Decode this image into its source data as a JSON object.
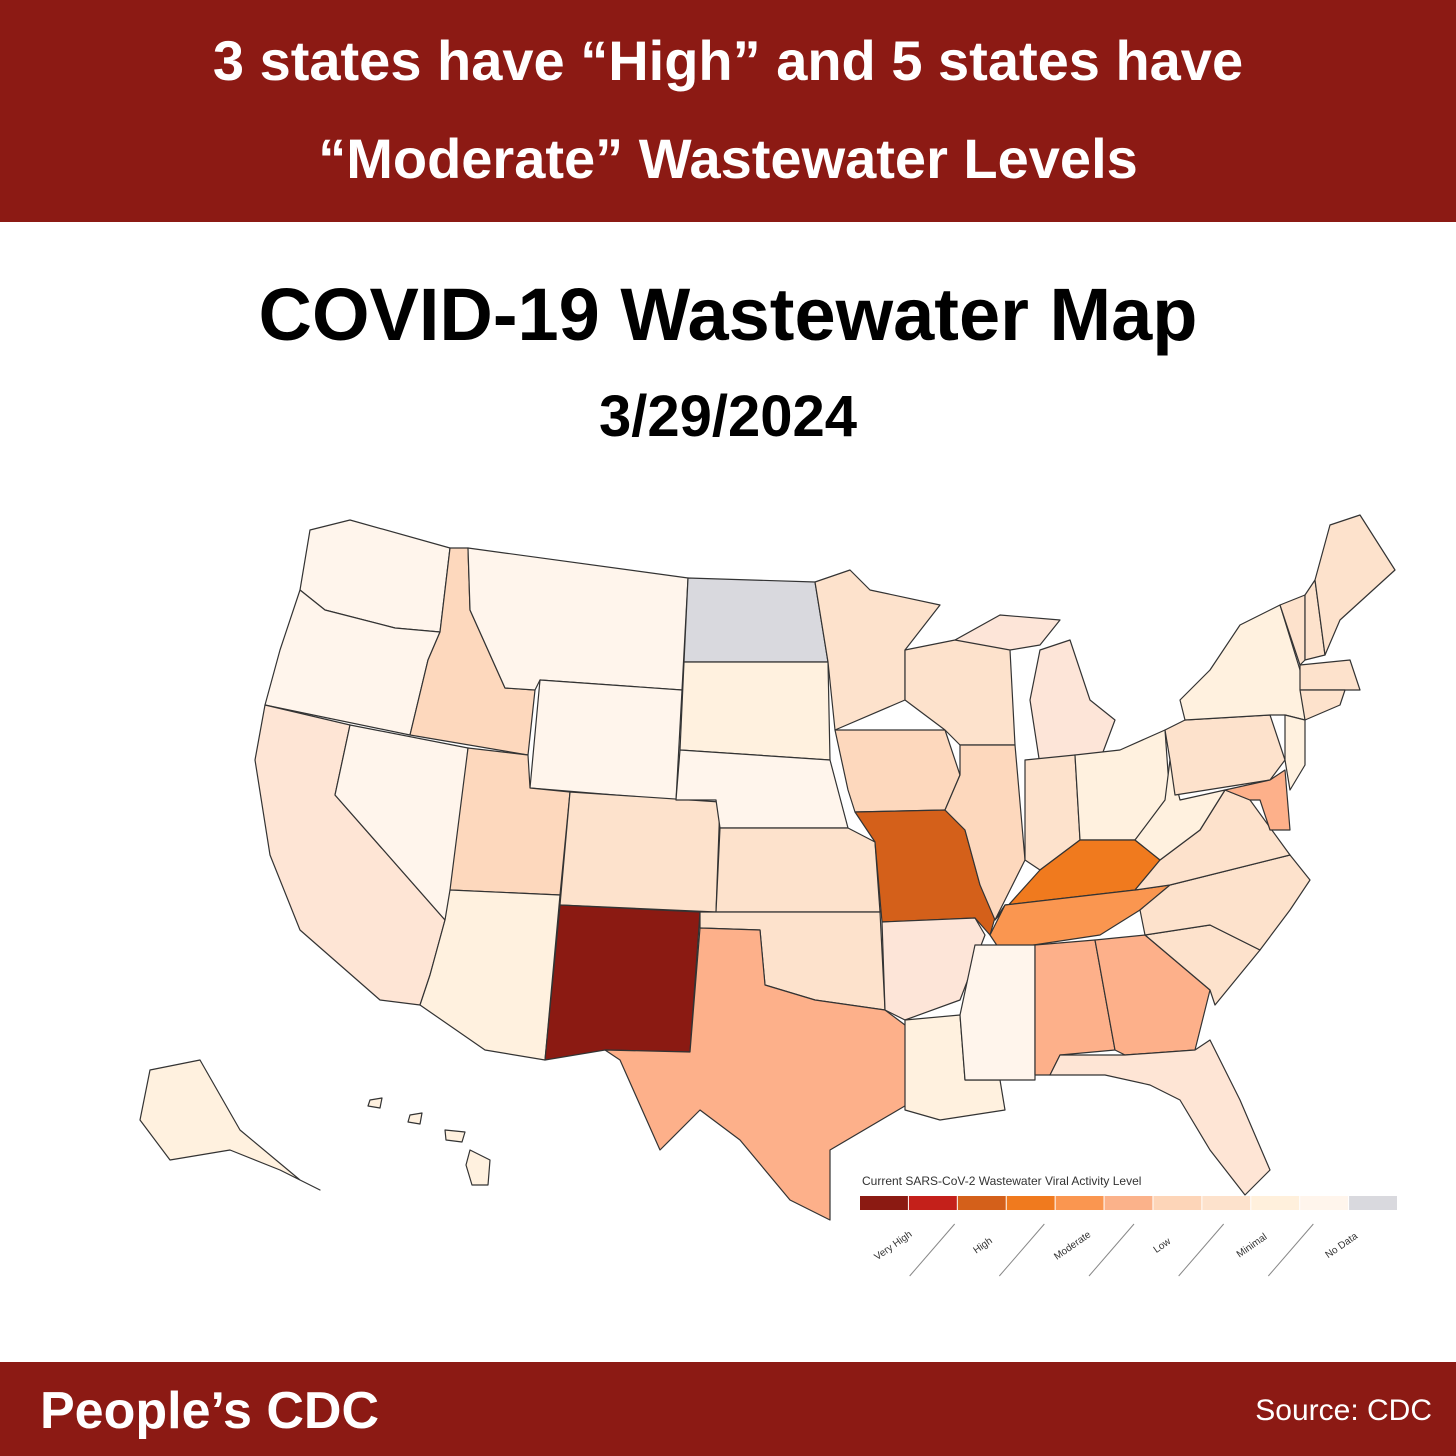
{
  "header": {
    "title_lines": [
      "3 states have “High” and 5 states have",
      "“Moderate” Wastewater Levels"
    ]
  },
  "map": {
    "title": "COVID-19 Wastewater Map",
    "date": "3/29/2024",
    "legend": {
      "title": "Current SARS-CoV-2 Wastewater Viral Activity Level",
      "colors": [
        "#8b1a12",
        "#c4201a",
        "#d4601a",
        "#f07a1e",
        "#fa9650",
        "#fbb28a",
        "#fdd5b8",
        "#fde2cc",
        "#fff0dc",
        "#fff5ec",
        "#d9d9de"
      ],
      "levels": [
        "Very High",
        "High",
        "Moderate",
        "Low",
        "Minimal",
        "No Data"
      ]
    }
  },
  "footer": {
    "brand": "People’s CDC",
    "source": "Source: CDC"
  }
}
